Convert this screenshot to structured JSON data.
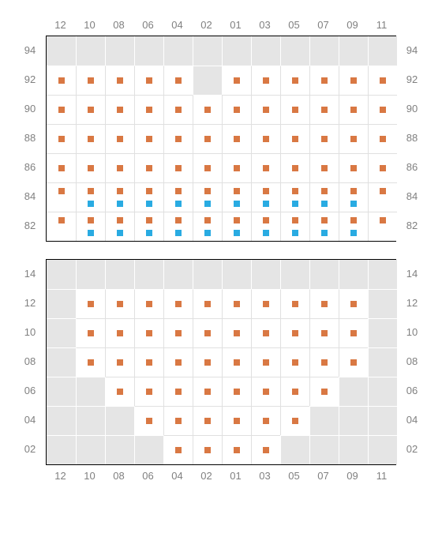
{
  "colors": {
    "empty_cell": "#e5e5e5",
    "seat_cell": "#ffffff",
    "grid_line_on_empty": "#ffffff",
    "grid_line_on_seat": "#e0e0e0",
    "marker_orange": "#d97843",
    "marker_blue": "#29abe2",
    "label_text": "#808080",
    "border": "#000000"
  },
  "layout": {
    "cell_size": 37,
    "cols": 12,
    "label_fontsize": 13
  },
  "column_labels": [
    "12",
    "10",
    "08",
    "06",
    "04",
    "02",
    "01",
    "03",
    "05",
    "07",
    "09",
    "11"
  ],
  "sections": [
    {
      "id": "upper",
      "row_labels": [
        "94",
        "92",
        "90",
        "88",
        "86",
        "84",
        "82"
      ],
      "rows": 7,
      "cells": {
        "0": {
          "seat_cols": [],
          "markers": {}
        },
        "1": {
          "seat_cols": [
            0,
            1,
            2,
            3,
            4,
            6,
            7,
            8,
            9,
            10,
            11
          ],
          "markers": {
            "center_orange": [
              0,
              1,
              2,
              3,
              4,
              6,
              7,
              8,
              9,
              10,
              11
            ]
          }
        },
        "2": {
          "seat_cols": [
            0,
            1,
            2,
            3,
            4,
            5,
            6,
            7,
            8,
            9,
            10,
            11
          ],
          "markers": {
            "center_orange": [
              0,
              1,
              2,
              3,
              4,
              5,
              6,
              7,
              8,
              9,
              10,
              11
            ]
          }
        },
        "3": {
          "seat_cols": [
            0,
            1,
            2,
            3,
            4,
            5,
            6,
            7,
            8,
            9,
            10,
            11
          ],
          "markers": {
            "center_orange": [
              0,
              1,
              2,
              3,
              4,
              5,
              6,
              7,
              8,
              9,
              10,
              11
            ]
          }
        },
        "4": {
          "seat_cols": [
            0,
            1,
            2,
            3,
            4,
            5,
            6,
            7,
            8,
            9,
            10,
            11
          ],
          "markers": {
            "center_orange": [
              0,
              1,
              2,
              3,
              4,
              5,
              6,
              7,
              8,
              9,
              10,
              11
            ]
          }
        },
        "5": {
          "seat_cols": [
            0,
            1,
            2,
            3,
            4,
            5,
            6,
            7,
            8,
            9,
            10,
            11
          ],
          "markers": {
            "top_orange": [
              0,
              1,
              2,
              3,
              4,
              5,
              6,
              7,
              8,
              9,
              10,
              11
            ],
            "bottom_blue": [
              1,
              2,
              3,
              4,
              5,
              6,
              7,
              8,
              9,
              10
            ]
          }
        },
        "6": {
          "seat_cols": [
            0,
            1,
            2,
            3,
            4,
            5,
            6,
            7,
            8,
            9,
            10,
            11
          ],
          "markers": {
            "top_orange": [
              0,
              1,
              2,
              3,
              4,
              5,
              6,
              7,
              8,
              9,
              10,
              11
            ],
            "bottom_blue": [
              1,
              2,
              3,
              4,
              5,
              6,
              7,
              8,
              9,
              10
            ]
          }
        }
      }
    },
    {
      "id": "lower",
      "row_labels": [
        "14",
        "12",
        "10",
        "08",
        "06",
        "04",
        "02"
      ],
      "rows": 7,
      "cells": {
        "0": {
          "seat_cols": [],
          "markers": {}
        },
        "1": {
          "seat_cols": [
            1,
            2,
            3,
            4,
            5,
            6,
            7,
            8,
            9,
            10
          ],
          "markers": {
            "center_orange": [
              1,
              2,
              3,
              4,
              5,
              6,
              7,
              8,
              9,
              10
            ]
          }
        },
        "2": {
          "seat_cols": [
            1,
            2,
            3,
            4,
            5,
            6,
            7,
            8,
            9,
            10
          ],
          "markers": {
            "center_orange": [
              1,
              2,
              3,
              4,
              5,
              6,
              7,
              8,
              9,
              10
            ]
          }
        },
        "3": {
          "seat_cols": [
            1,
            2,
            3,
            4,
            5,
            6,
            7,
            8,
            9,
            10
          ],
          "markers": {
            "center_orange": [
              1,
              2,
              3,
              4,
              5,
              6,
              7,
              8,
              9,
              10
            ]
          }
        },
        "4": {
          "seat_cols": [
            2,
            3,
            4,
            5,
            6,
            7,
            8,
            9
          ],
          "markers": {
            "center_orange": [
              2,
              3,
              4,
              5,
              6,
              7,
              8,
              9
            ]
          }
        },
        "5": {
          "seat_cols": [
            3,
            4,
            5,
            6,
            7,
            8
          ],
          "markers": {
            "center_orange": [
              3,
              4,
              5,
              6,
              7,
              8
            ]
          }
        },
        "6": {
          "seat_cols": [
            4,
            5,
            6,
            7
          ],
          "markers": {
            "center_orange": [
              4,
              5,
              6,
              7
            ]
          }
        }
      }
    }
  ]
}
